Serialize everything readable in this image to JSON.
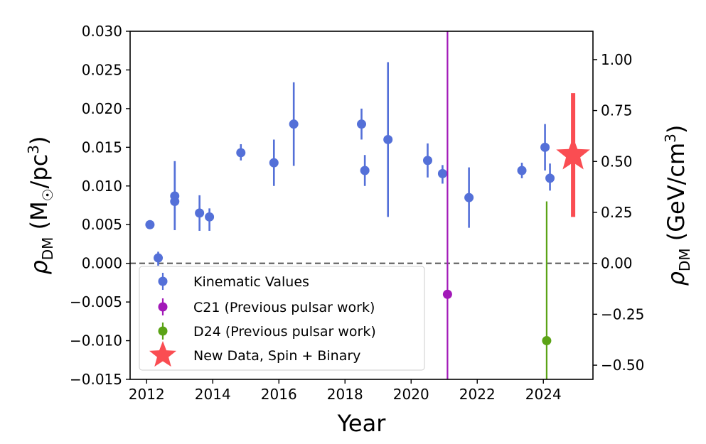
{
  "chart_data": {
    "type": "scatter",
    "title": "",
    "xlabel": "Year",
    "ylabel_left": "ρ_DM (M☉/pc³)",
    "ylabel_right": "ρ_DM (GeV/cm³)",
    "xlim": [
      2011.5,
      2025.5
    ],
    "ylim_left": [
      -0.015,
      0.03
    ],
    "ylim_right_unit_factor": 37.97,
    "x_ticks": [
      2012,
      2014,
      2016,
      2018,
      2020,
      2022,
      2024
    ],
    "x_tick_labels": [
      "2012",
      "2014",
      "2016",
      "2018",
      "2020",
      "2022",
      "2024"
    ],
    "y_left_ticks": [
      -0.015,
      -0.01,
      -0.005,
      0.0,
      0.005,
      0.01,
      0.015,
      0.02,
      0.025,
      0.03
    ],
    "y_left_tick_labels": [
      "−0.015",
      "−0.010",
      "−0.005",
      "0.000",
      "0.005",
      "0.010",
      "0.015",
      "0.020",
      "0.025",
      "0.030"
    ],
    "y_right_ticks": [
      -0.5,
      -0.25,
      0.0,
      0.25,
      0.5,
      0.75,
      1.0
    ],
    "y_right_tick_labels": [
      "−0.50",
      "−0.25",
      "0.00",
      "0.25",
      "0.50",
      "0.75",
      "1.00"
    ],
    "zero_line": true,
    "grid": false,
    "legend_position": "lower-left",
    "series": [
      {
        "name": "Kinematic Values",
        "color": "#5470d8",
        "marker": "circle",
        "points": [
          {
            "x": 2012.1,
            "y": 0.005,
            "lo": 0.005,
            "hi": 0.005
          },
          {
            "x": 2012.35,
            "y": 0.0007,
            "lo": -0.0003,
            "hi": 0.0015
          },
          {
            "x": 2012.85,
            "y": 0.0087,
            "lo": 0.0043,
            "hi": 0.0132
          },
          {
            "x": 2012.85,
            "y": 0.008,
            "lo": 0.0043,
            "hi": 0.0132
          },
          {
            "x": 2013.6,
            "y": 0.0065,
            "lo": 0.0042,
            "hi": 0.0088
          },
          {
            "x": 2013.9,
            "y": 0.006,
            "lo": 0.0042,
            "hi": 0.0071
          },
          {
            "x": 2014.85,
            "y": 0.0143,
            "lo": 0.0133,
            "hi": 0.0154
          },
          {
            "x": 2015.85,
            "y": 0.013,
            "lo": 0.01,
            "hi": 0.016
          },
          {
            "x": 2016.45,
            "y": 0.018,
            "lo": 0.0126,
            "hi": 0.0234
          },
          {
            "x": 2018.5,
            "y": 0.018,
            "lo": 0.016,
            "hi": 0.02
          },
          {
            "x": 2018.6,
            "y": 0.012,
            "lo": 0.01,
            "hi": 0.014
          },
          {
            "x": 2019.3,
            "y": 0.016,
            "lo": 0.006,
            "hi": 0.026
          },
          {
            "x": 2020.5,
            "y": 0.0133,
            "lo": 0.0111,
            "hi": 0.0155
          },
          {
            "x": 2020.95,
            "y": 0.0116,
            "lo": 0.0103,
            "hi": 0.0127
          },
          {
            "x": 2021.75,
            "y": 0.0085,
            "lo": 0.0046,
            "hi": 0.0124
          },
          {
            "x": 2023.35,
            "y": 0.012,
            "lo": 0.011,
            "hi": 0.013
          },
          {
            "x": 2024.05,
            "y": 0.015,
            "lo": 0.012,
            "hi": 0.018
          },
          {
            "x": 2024.2,
            "y": 0.011,
            "lo": 0.0094,
            "hi": 0.0129
          }
        ]
      },
      {
        "name": "C21 (Previous pulsar work)",
        "color": "#a219b8",
        "marker": "circle",
        "points": [
          {
            "x": 2021.1,
            "y": -0.004,
            "lo": -0.015,
            "hi": 0.03
          }
        ]
      },
      {
        "name": "D24 (Previous pulsar work)",
        "color": "#5ba316",
        "marker": "circle",
        "points": [
          {
            "x": 2024.1,
            "y": -0.01,
            "lo": -0.015,
            "hi": 0.008
          }
        ]
      },
      {
        "name": "New Data, Spin + Binary",
        "color": "#fa4d52",
        "marker": "star",
        "points": [
          {
            "x": 2024.9,
            "y": 0.014,
            "lo": 0.006,
            "hi": 0.022
          }
        ]
      }
    ]
  }
}
